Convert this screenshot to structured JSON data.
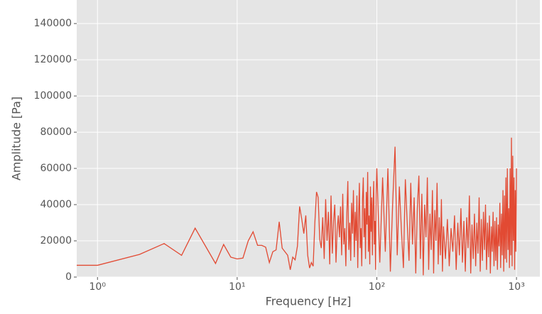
{
  "chart_data": {
    "type": "line",
    "xlabel": "Frequency [Hz]",
    "ylabel": "Amplitude [Pa]",
    "xscale": "log",
    "grid": true,
    "background": "#e5e5e5",
    "xlim": [
      0.71,
      1470
    ],
    "ylim": [
      0,
      153000
    ],
    "xticks": [
      {
        "value": 1,
        "label": "10⁰"
      },
      {
        "value": 10,
        "label": "10¹"
      },
      {
        "value": 100,
        "label": "10²"
      },
      {
        "value": 1000,
        "label": "10³"
      }
    ],
    "yticks": [
      0,
      20000,
      40000,
      60000,
      80000,
      100000,
      120000,
      140000
    ],
    "x": [
      0.71,
      1,
      2,
      3,
      4,
      5,
      7,
      8,
      9,
      10,
      11,
      12,
      13,
      14,
      15,
      16,
      17,
      18,
      19,
      20,
      21,
      23,
      24,
      25,
      26,
      27,
      28,
      29,
      30,
      31,
      32,
      33,
      34,
      35,
      36,
      37,
      38,
      39,
      40,
      41,
      42,
      43,
      44,
      45,
      46,
      47,
      48,
      49,
      50,
      51,
      52,
      53,
      54,
      55,
      56,
      57,
      58,
      59,
      60,
      61,
      62,
      63,
      64,
      65,
      66,
      67,
      68,
      69,
      70,
      71,
      72,
      73,
      74,
      75,
      76,
      77,
      78,
      79,
      80,
      81,
      82,
      83,
      84,
      85,
      86,
      87,
      88,
      89,
      90,
      91,
      92,
      93,
      94,
      95,
      96,
      97,
      98,
      99,
      100,
      105,
      110,
      115,
      120,
      125,
      130,
      135,
      140,
      145,
      150,
      155,
      160,
      165,
      170,
      175,
      180,
      185,
      190,
      195,
      200,
      205,
      210,
      215,
      220,
      225,
      230,
      235,
      240,
      245,
      250,
      255,
      260,
      265,
      270,
      275,
      280,
      285,
      290,
      295,
      300,
      310,
      320,
      330,
      340,
      350,
      360,
      370,
      380,
      390,
      400,
      410,
      420,
      430,
      440,
      450,
      460,
      470,
      480,
      490,
      500,
      510,
      520,
      530,
      540,
      550,
      560,
      570,
      580,
      590,
      600,
      610,
      620,
      630,
      640,
      650,
      660,
      670,
      680,
      690,
      700,
      710,
      720,
      730,
      740,
      750,
      760,
      770,
      780,
      790,
      800,
      810,
      820,
      830,
      840,
      850,
      860,
      870,
      880,
      890,
      900,
      910,
      920,
      930,
      940,
      950,
      960,
      970,
      980,
      990,
      1000
    ],
    "series": [
      {
        "name": "amplitude",
        "color": "#e24a33",
        "values": [
          6500,
          6500,
          12500,
          18500,
          12000,
          27000,
          7500,
          18000,
          11000,
          10000,
          10500,
          20000,
          25000,
          17500,
          17500,
          16500,
          8000,
          14000,
          15000,
          30500,
          16000,
          12000,
          4000,
          11000,
          9500,
          17000,
          39000,
          32000,
          24000,
          34000,
          12000,
          5000,
          8000,
          6000,
          30000,
          47000,
          44000,
          21000,
          16000,
          33000,
          10000,
          43000,
          20000,
          36000,
          7000,
          45000,
          13000,
          31000,
          40000,
          8000,
          26000,
          34000,
          22000,
          39000,
          12000,
          46000,
          18000,
          27000,
          6000,
          35000,
          53000,
          15000,
          30000,
          9000,
          41000,
          24000,
          48000,
          11000,
          36000,
          20000,
          45000,
          5000,
          33000,
          52000,
          16000,
          27000,
          6000,
          43000,
          55000,
          22000,
          38000,
          10000,
          47000,
          29000,
          58000,
          14000,
          34000,
          7000,
          50000,
          25000,
          44000,
          12000,
          39000,
          53000,
          18000,
          31000,
          4000,
          47000,
          60000,
          8000,
          55000,
          14000,
          60000,
          3000,
          42000,
          72000,
          12000,
          50000,
          26000,
          5000,
          54000,
          30000,
          9000,
          52000,
          18000,
          44000,
          2000,
          38000,
          56000,
          10000,
          46000,
          1000,
          40000,
          22000,
          55000,
          4000,
          35000,
          15000,
          48000,
          2000,
          37000,
          20000,
          52000,
          7000,
          33000,
          12000,
          43000,
          3000,
          28000,
          10000,
          32000,
          6000,
          27000,
          14000,
          34000,
          4000,
          30000,
          12000,
          38000,
          8000,
          31000,
          3000,
          33000,
          16000,
          45000,
          2000,
          29000,
          10000,
          35000,
          6000,
          30000,
          13000,
          44000,
          3000,
          32000,
          9000,
          36000,
          15000,
          40000,
          4000,
          30000,
          11000,
          34000,
          2000,
          28000,
          14000,
          36000,
          6000,
          31000,
          9000,
          33000,
          4000,
          29000,
          17000,
          41000,
          5000,
          35000,
          12000,
          48000,
          3000,
          45000,
          10000,
          55000,
          8000,
          60000,
          15000,
          38000,
          5000,
          60000,
          12000,
          77000,
          6000,
          67000,
          20000,
          55000,
          4000,
          48000,
          14000,
          60000
        ]
      }
    ]
  }
}
